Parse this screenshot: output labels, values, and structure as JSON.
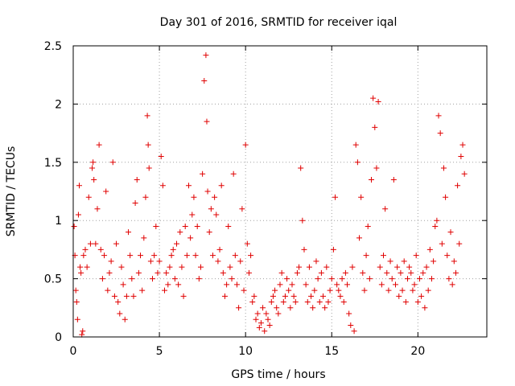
{
  "chart_data": {
    "type": "scatter",
    "title": "Day 301 of 2016, SRMTID for receiver iqal",
    "xlabel": "GPS time / hours",
    "ylabel": "SRMTID / TECUs",
    "xlim": [
      0,
      24
    ],
    "ylim": [
      0,
      2.5
    ],
    "xticks": [
      0,
      5,
      10,
      15,
      20
    ],
    "xtick_labels": [
      "0",
      "5",
      "10",
      "15",
      "20"
    ],
    "yticks": [
      0,
      0.5,
      1,
      1.5,
      2,
      2.5
    ],
    "ytick_labels": [
      "0",
      "0.5",
      "1",
      "1.5",
      "2",
      "2.5"
    ],
    "grid": true,
    "marker": "plus",
    "color": "#e00000",
    "series": [
      {
        "name": "SRMTID",
        "x": [
          0.05,
          0.1,
          0.15,
          0.2,
          0.25,
          0.3,
          0.35,
          0.4,
          0.45,
          0.5,
          0.55,
          0.6,
          0.7,
          0.8,
          0.9,
          1.0,
          1.1,
          1.15,
          1.2,
          1.3,
          1.4,
          1.5,
          1.6,
          1.7,
          1.8,
          1.9,
          2.0,
          2.1,
          2.2,
          2.3,
          2.4,
          2.5,
          2.6,
          2.7,
          2.8,
          2.9,
          3.0,
          3.1,
          3.2,
          3.3,
          3.4,
          3.5,
          3.6,
          3.7,
          3.8,
          3.9,
          4.0,
          4.1,
          4.2,
          4.3,
          4.35,
          4.4,
          4.5,
          4.6,
          4.7,
          4.8,
          4.9,
          5.0,
          5.1,
          5.2,
          5.3,
          5.4,
          5.5,
          5.6,
          5.7,
          5.8,
          5.9,
          6.0,
          6.1,
          6.2,
          6.3,
          6.4,
          6.5,
          6.6,
          6.7,
          6.8,
          6.9,
          7.0,
          7.1,
          7.2,
          7.3,
          7.4,
          7.5,
          7.6,
          7.7,
          7.75,
          7.8,
          7.9,
          8.0,
          8.1,
          8.2,
          8.3,
          8.4,
          8.5,
          8.6,
          8.7,
          8.8,
          8.9,
          9.0,
          9.1,
          9.2,
          9.3,
          9.4,
          9.5,
          9.6,
          9.7,
          9.8,
          9.9,
          10.0,
          10.1,
          10.2,
          10.3,
          10.4,
          10.5,
          10.6,
          10.7,
          10.8,
          10.9,
          11.0,
          11.1,
          11.2,
          11.3,
          11.4,
          11.5,
          11.6,
          11.7,
          11.8,
          11.9,
          12.0,
          12.1,
          12.2,
          12.3,
          12.4,
          12.5,
          12.6,
          12.7,
          12.8,
          12.9,
          13.0,
          13.1,
          13.2,
          13.3,
          13.4,
          13.5,
          13.6,
          13.7,
          13.8,
          13.9,
          14.0,
          14.1,
          14.2,
          14.3,
          14.4,
          14.5,
          14.6,
          14.7,
          14.8,
          14.9,
          15.0,
          15.1,
          15.2,
          15.3,
          15.4,
          15.5,
          15.6,
          15.7,
          15.8,
          15.9,
          16.0,
          16.1,
          16.2,
          16.3,
          16.4,
          16.5,
          16.6,
          16.7,
          16.8,
          16.9,
          17.0,
          17.1,
          17.2,
          17.3,
          17.4,
          17.5,
          17.6,
          17.7,
          17.8,
          17.9,
          18.0,
          18.1,
          18.2,
          18.3,
          18.4,
          18.5,
          18.6,
          18.7,
          18.8,
          18.9,
          19.0,
          19.1,
          19.2,
          19.3,
          19.4,
          19.5,
          19.6,
          19.7,
          19.8,
          19.9,
          20.0,
          20.1,
          20.2,
          20.3,
          20.4,
          20.5,
          20.6,
          20.7,
          20.8,
          20.9,
          21.0,
          21.1,
          21.2,
          21.3,
          21.4,
          21.5,
          21.6,
          21.7,
          21.8,
          21.9,
          22.0,
          22.1,
          22.2,
          22.3,
          22.4,
          22.5,
          22.6,
          22.7
        ],
        "y": [
          0.95,
          0.7,
          0.4,
          0.3,
          0.15,
          1.05,
          1.3,
          0.6,
          0.55,
          0.02,
          0.05,
          0.7,
          0.75,
          0.6,
          1.2,
          0.8,
          1.45,
          1.5,
          1.35,
          0.8,
          1.1,
          1.65,
          0.75,
          0.5,
          0.7,
          1.25,
          0.4,
          0.55,
          0.65,
          1.5,
          0.35,
          0.8,
          0.3,
          0.2,
          0.6,
          0.45,
          0.15,
          0.35,
          0.9,
          0.7,
          0.5,
          0.35,
          1.15,
          1.35,
          0.55,
          0.7,
          0.4,
          0.85,
          1.2,
          1.9,
          1.65,
          1.45,
          0.65,
          0.5,
          0.7,
          0.95,
          0.55,
          0.65,
          1.55,
          1.3,
          0.4,
          0.55,
          0.45,
          0.6,
          0.7,
          0.75,
          0.5,
          0.8,
          0.45,
          0.9,
          0.6,
          0.35,
          0.95,
          0.7,
          1.3,
          0.85,
          1.05,
          1.2,
          0.7,
          0.95,
          0.5,
          0.6,
          1.4,
          2.2,
          2.42,
          1.85,
          1.25,
          0.9,
          1.1,
          0.7,
          1.2,
          1.05,
          0.65,
          0.75,
          1.3,
          0.55,
          0.35,
          0.45,
          0.95,
          0.6,
          0.5,
          1.4,
          0.7,
          0.45,
          0.25,
          0.65,
          1.1,
          0.4,
          1.65,
          0.8,
          0.55,
          0.7,
          0.3,
          0.35,
          0.15,
          0.2,
          0.08,
          0.12,
          0.25,
          0.05,
          0.2,
          0.15,
          0.1,
          0.3,
          0.35,
          0.4,
          0.25,
          0.2,
          0.45,
          0.55,
          0.3,
          0.35,
          0.5,
          0.4,
          0.25,
          0.45,
          0.35,
          0.3,
          0.55,
          0.6,
          1.45,
          1.0,
          0.75,
          0.45,
          0.3,
          0.6,
          0.35,
          0.25,
          0.4,
          0.65,
          0.5,
          0.3,
          0.55,
          0.35,
          0.25,
          0.6,
          0.3,
          0.4,
          0.5,
          0.75,
          1.2,
          0.45,
          0.4,
          0.35,
          0.5,
          0.3,
          0.55,
          0.45,
          0.2,
          0.1,
          0.6,
          0.05,
          1.65,
          1.5,
          0.85,
          1.2,
          0.55,
          0.4,
          0.7,
          0.95,
          0.5,
          1.35,
          2.05,
          1.8,
          1.45,
          2.02,
          0.6,
          0.45,
          0.7,
          1.1,
          0.55,
          0.4,
          0.65,
          0.5,
          1.35,
          0.45,
          0.6,
          0.35,
          0.55,
          0.4,
          0.65,
          0.3,
          0.5,
          0.6,
          0.55,
          0.4,
          0.45,
          0.7,
          0.3,
          0.5,
          0.35,
          0.55,
          0.25,
          0.6,
          0.4,
          0.75,
          0.5,
          0.65,
          0.95,
          1.0,
          1.9,
          1.75,
          0.8,
          1.45,
          1.2,
          0.7,
          0.5,
          0.9,
          0.45,
          0.65,
          0.55,
          1.3,
          0.8,
          1.55,
          1.65,
          1.4
        ]
      }
    ]
  }
}
